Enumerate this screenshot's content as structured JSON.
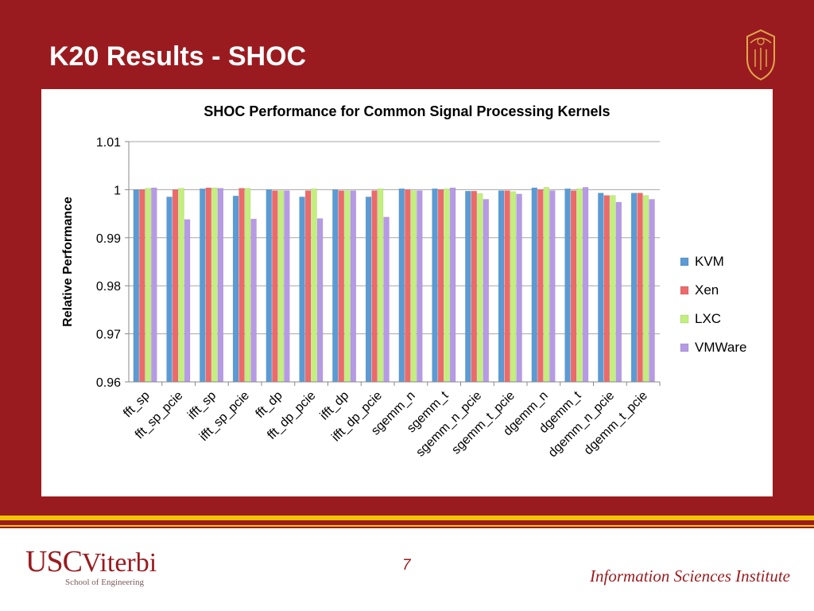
{
  "slide": {
    "title": "K20 Results - SHOC",
    "page_number": "7",
    "footer_org": "Information Sciences Institute",
    "logo_usc": "USC",
    "logo_viterbi": "Viterbi",
    "logo_sub": "School of Engineering"
  },
  "colors": {
    "background": "#9a1b1f",
    "accent_gold": "#f2c500",
    "kvm": "#5b9bd5",
    "xen": "#ee6a6a",
    "lxc": "#c3ef7c",
    "vmware": "#b69ae6"
  },
  "chart_data": {
    "type": "bar",
    "title": "SHOC Performance for Common Signal Processing Kernels",
    "xlabel": "",
    "ylabel": "Relative Performance",
    "ylim": [
      0.96,
      1.01
    ],
    "yticks": [
      "0.96",
      "0.97",
      "0.98",
      "0.99",
      "1",
      "1.01"
    ],
    "grid": true,
    "legend_position": "right",
    "categories": [
      "fft_sp",
      "fft_sp_pcie",
      "ifft_sp",
      "ifft_sp_pcie",
      "fft_dp",
      "fft_dp_pcie",
      "ifft_dp",
      "ifft_dp_pcie",
      "sgemm_n",
      "sgemm_t",
      "sgemm_n_pcie",
      "sgemm_t_pcie",
      "dgemm_n",
      "dgemm_t",
      "dgemm_n_pcie",
      "dgemm_t_pcie"
    ],
    "series": [
      {
        "name": "KVM",
        "color": "#5b9bd5",
        "values": [
          1.0,
          0.9985,
          1.0002,
          0.9987,
          1.0,
          0.9985,
          1.0,
          0.9985,
          1.0002,
          1.0002,
          0.9997,
          0.9998,
          1.0004,
          1.0002,
          0.9993,
          0.9993
        ]
      },
      {
        "name": "Xen",
        "color": "#ee6a6a",
        "values": [
          1.0,
          1.0,
          1.0004,
          1.0003,
          0.9998,
          0.9998,
          0.9998,
          0.9998,
          1.0,
          1.0,
          0.9997,
          0.9998,
          1.0,
          0.9998,
          0.9988,
          0.9993
        ]
      },
      {
        "name": "LXC",
        "color": "#c3ef7c",
        "values": [
          1.0003,
          1.0003,
          1.0004,
          1.0003,
          0.9998,
          1.0002,
          0.9998,
          1.0002,
          0.9998,
          1.0002,
          0.9992,
          0.9996,
          1.0005,
          1.0002,
          0.9988,
          0.9988
        ]
      },
      {
        "name": "VMWare",
        "color": "#b69ae6",
        "values": [
          1.0004,
          0.9938,
          1.0003,
          0.9939,
          0.9998,
          0.994,
          0.9998,
          0.9943,
          0.9998,
          1.0004,
          0.998,
          0.9991,
          0.9998,
          1.0005,
          0.9974,
          0.998
        ]
      }
    ]
  }
}
